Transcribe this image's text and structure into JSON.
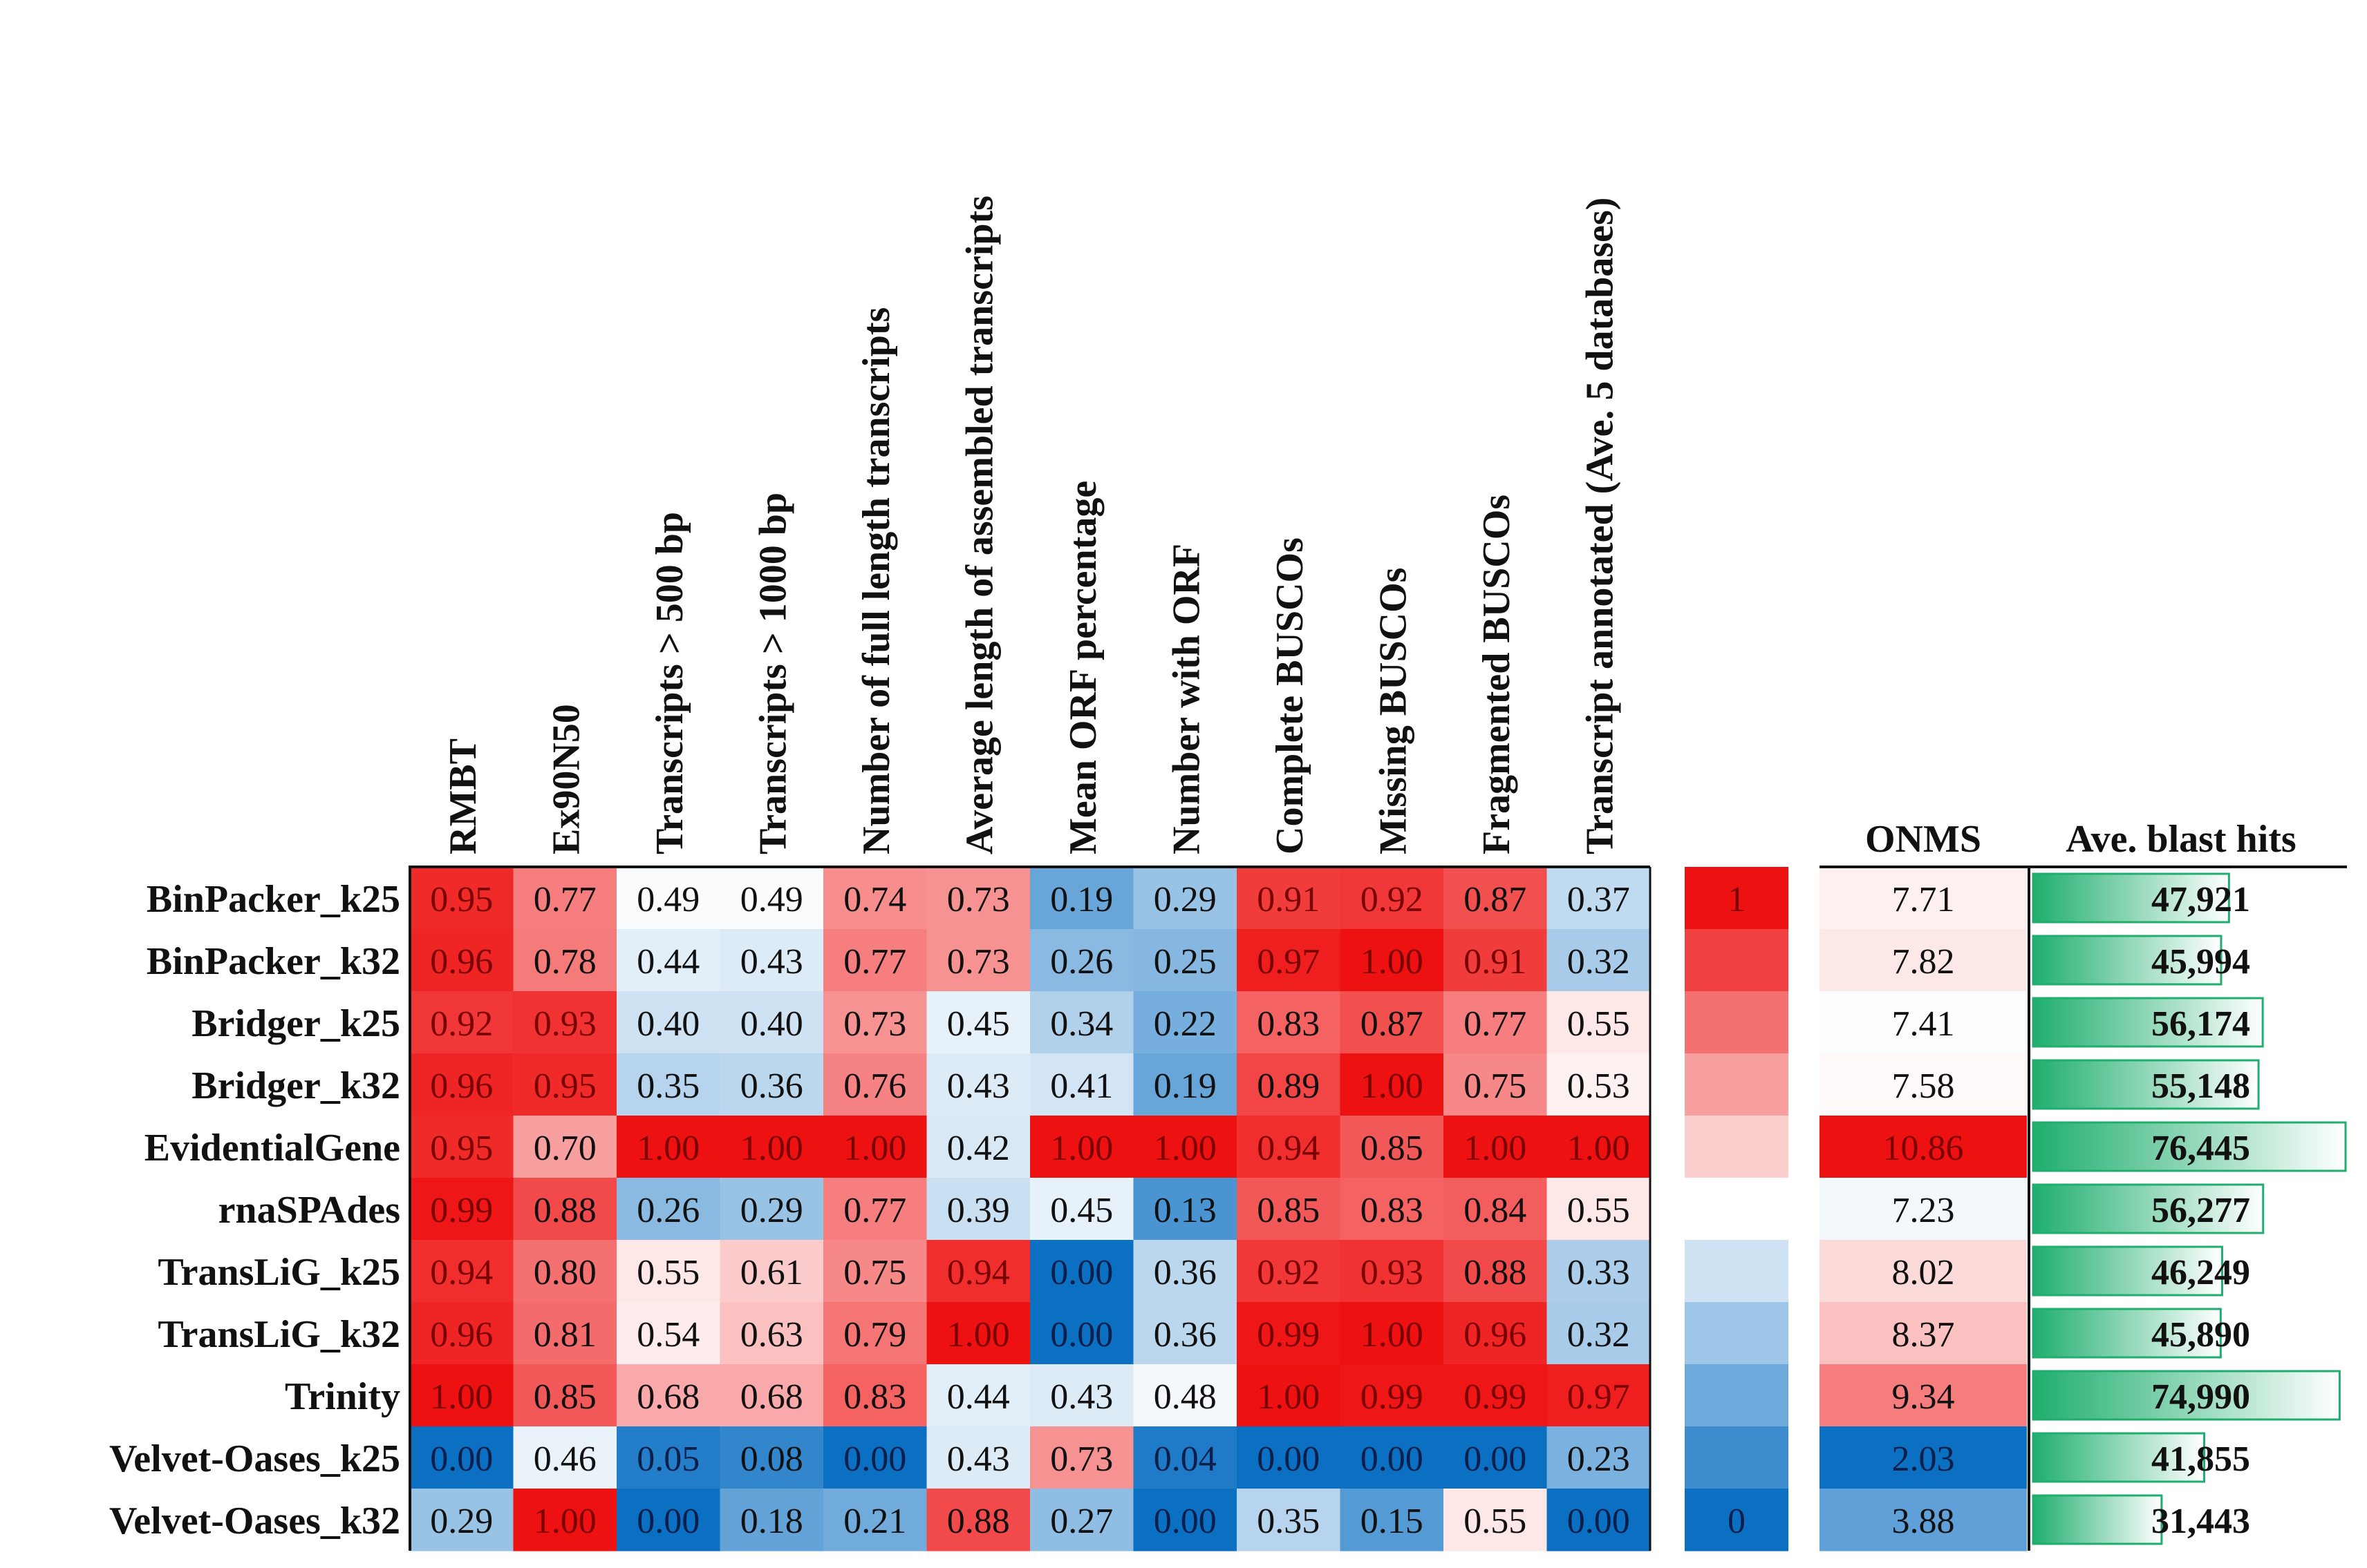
{
  "chart_data": {
    "type": "heatmap",
    "columns": [
      "RMBT",
      "Ex90N50",
      "Transcripts > 500 bp",
      "Transcripts > 1000 bp",
      "Number of full length transcripts",
      "Average length of assembled transcripts",
      "Mean ORF percentage",
      "Number with ORF",
      "Complete BUSCOs",
      "Missing BUSCOs",
      "Fragmented BUSCOs",
      "Transcript annotated (Ave. 5 databases)"
    ],
    "rows": [
      "BinPacker_k25",
      "BinPacker_k32",
      "Bridger_k25",
      "Bridger_k32",
      "EvidentialGene",
      "rnaSPAdes",
      "TransLiG_k25",
      "TransLiG_k32",
      "Trinity",
      "Velvet-Oases_k25",
      "Velvet-Oases_k32"
    ],
    "values": [
      [
        "0.95",
        "0.77",
        "0.49",
        "0.49",
        "0.74",
        "0.73",
        "0.19",
        "0.29",
        "0.91",
        "0.92",
        "0.87",
        "0.37"
      ],
      [
        "0.96",
        "0.78",
        "0.44",
        "0.43",
        "0.77",
        "0.73",
        "0.26",
        "0.25",
        "0.97",
        "1.00",
        "0.91",
        "0.32"
      ],
      [
        "0.92",
        "0.93",
        "0.40",
        "0.40",
        "0.73",
        "0.45",
        "0.34",
        "0.22",
        "0.83",
        "0.87",
        "0.77",
        "0.55"
      ],
      [
        "0.96",
        "0.95",
        "0.35",
        "0.36",
        "0.76",
        "0.43",
        "0.41",
        "0.19",
        "0.89",
        "1.00",
        "0.75",
        "0.53"
      ],
      [
        "0.95",
        "0.70",
        "1.00",
        "1.00",
        "1.00",
        "0.42",
        "1.00",
        "1.00",
        "0.94",
        "0.85",
        "1.00",
        "1.00"
      ],
      [
        "0.99",
        "0.88",
        "0.26",
        "0.29",
        "0.77",
        "0.39",
        "0.45",
        "0.13",
        "0.85",
        "0.83",
        "0.84",
        "0.55"
      ],
      [
        "0.94",
        "0.80",
        "0.55",
        "0.61",
        "0.75",
        "0.94",
        "0.00",
        "0.36",
        "0.92",
        "0.93",
        "0.88",
        "0.33"
      ],
      [
        "0.96",
        "0.81",
        "0.54",
        "0.63",
        "0.79",
        "1.00",
        "0.00",
        "0.36",
        "0.99",
        "1.00",
        "0.96",
        "0.32"
      ],
      [
        "1.00",
        "0.85",
        "0.68",
        "0.68",
        "0.83",
        "0.44",
        "0.43",
        "0.48",
        "1.00",
        "0.99",
        "0.99",
        "0.97"
      ],
      [
        "0.00",
        "0.46",
        "0.05",
        "0.08",
        "0.00",
        "0.43",
        "0.73",
        "0.04",
        "0.00",
        "0.00",
        "0.00",
        "0.23"
      ],
      [
        "0.29",
        "1.00",
        "0.00",
        "0.18",
        "0.21",
        "0.88",
        "0.27",
        "0.00",
        "0.35",
        "0.15",
        "0.55",
        "0.00"
      ]
    ],
    "color_scale": {
      "legend_max_label": "1",
      "legend_min_label": "0",
      "legend_steps": [
        1.0,
        0.9,
        0.8,
        0.7,
        0.6,
        0.5,
        0.4,
        0.3,
        0.2,
        0.1,
        0.0
      ],
      "low_color": "#0b6fc2",
      "mid_color": "#ffffff",
      "high_color": "#ee1111"
    },
    "onms": {
      "header": "ONMS",
      "values": [
        "7.71",
        "7.82",
        "7.41",
        "7.58",
        "10.86",
        "7.23",
        "8.02",
        "8.37",
        "9.34",
        "2.03",
        "3.88"
      ],
      "scale_min": 2.03,
      "scale_mid": 7.5,
      "scale_max": 10.86
    },
    "blast": {
      "header": "Ave. blast hits",
      "values": [
        "47,921",
        "45,994",
        "56,174",
        "55,148",
        "76,445",
        "56,277",
        "46,249",
        "45,890",
        "74,990",
        "41,855",
        "31,443"
      ],
      "bar_color": "#1fae6e",
      "max_value": 76445
    },
    "grid": false
  }
}
